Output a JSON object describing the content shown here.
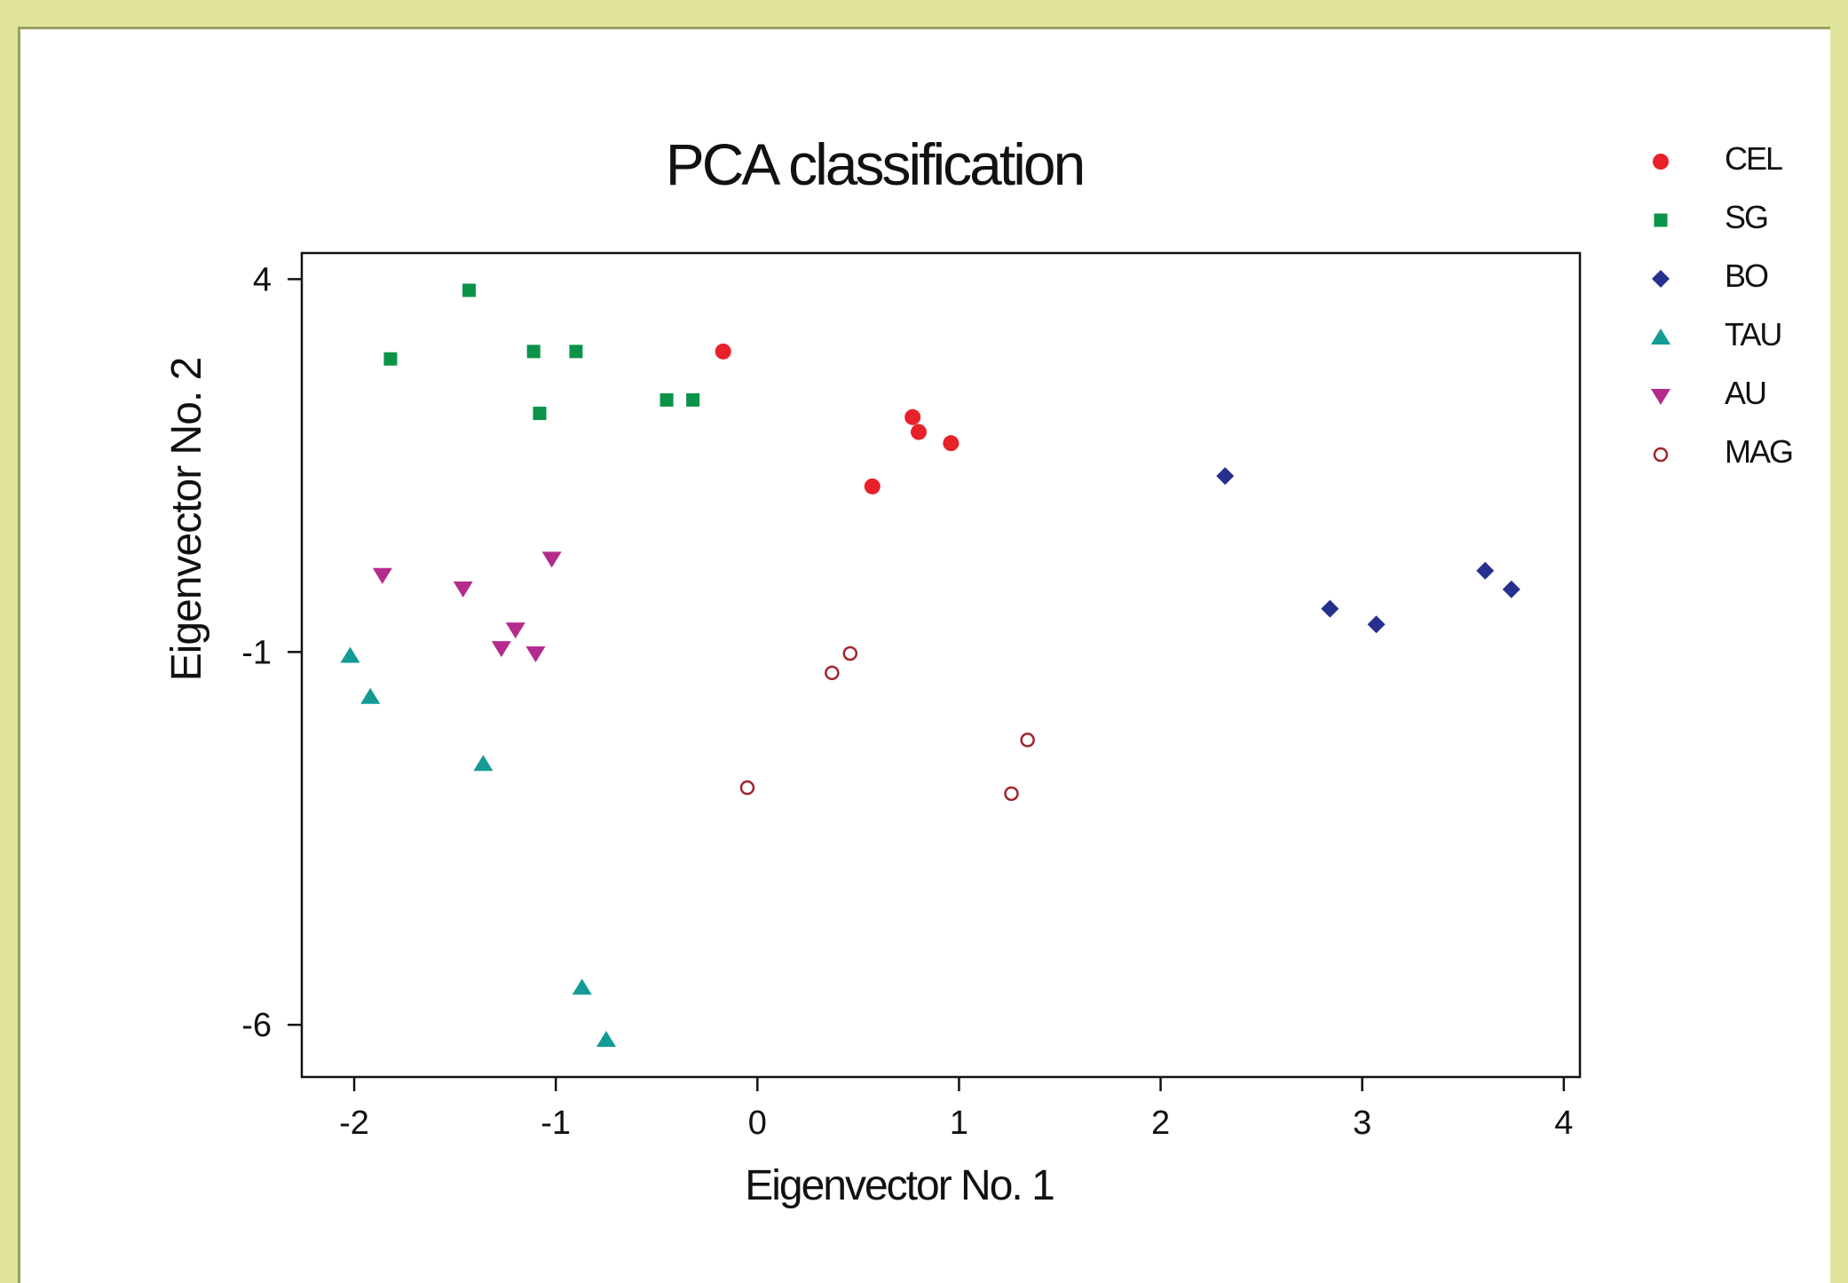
{
  "colors": {
    "background": "#dfe49a",
    "CEL": "#e8212a",
    "SG": "#0b9449",
    "BO": "#27308f",
    "TAU": "#139b94",
    "AU": "#b52a8d",
    "MAG": "#a1242c"
  },
  "chart_data": {
    "type": "scatter",
    "title": "PCA classification",
    "xlabel": "Eigenvector No. 1",
    "ylabel": "Eigenvector No. 2",
    "xlim": [
      -2.26,
      4.08
    ],
    "ylim": [
      -6.7,
      4.35
    ],
    "xticks": [
      -2,
      -1,
      0,
      1,
      2,
      3,
      4
    ],
    "yticks": [
      4,
      -1,
      -6
    ],
    "grid": false,
    "legend_position": "top-right, outside plot",
    "series": [
      {
        "name": "CEL",
        "marker": "circle",
        "color": "#e8212a",
        "points": [
          [
            -0.17,
            3.03
          ],
          [
            0.77,
            2.15
          ],
          [
            0.8,
            1.95
          ],
          [
            0.96,
            1.8
          ],
          [
            0.57,
            1.22
          ]
        ]
      },
      {
        "name": "SG",
        "marker": "square",
        "color": "#0b9449",
        "points": [
          [
            -1.43,
            3.85
          ],
          [
            -1.82,
            2.93
          ],
          [
            -1.11,
            3.03
          ],
          [
            -0.9,
            3.03
          ],
          [
            -1.08,
            2.2
          ],
          [
            -0.45,
            2.38
          ],
          [
            -0.32,
            2.38
          ]
        ]
      },
      {
        "name": "BO",
        "marker": "diamond",
        "color": "#27308f",
        "points": [
          [
            2.32,
            1.36
          ],
          [
            2.84,
            -0.42
          ],
          [
            3.07,
            -0.63
          ],
          [
            3.61,
            0.09
          ],
          [
            3.74,
            -0.16
          ]
        ]
      },
      {
        "name": "TAU",
        "marker": "triangle-up",
        "color": "#139b94",
        "points": [
          [
            -2.02,
            -1.05
          ],
          [
            -1.92,
            -1.6
          ],
          [
            -1.36,
            -2.5
          ],
          [
            -0.87,
            -5.5
          ],
          [
            -0.75,
            -6.2
          ]
        ]
      },
      {
        "name": "AU",
        "marker": "triangle-down",
        "color": "#b52a8d",
        "points": [
          [
            -1.86,
            0.03
          ],
          [
            -1.46,
            -0.15
          ],
          [
            -1.02,
            0.25
          ],
          [
            -1.2,
            -0.7
          ],
          [
            -1.27,
            -0.95
          ],
          [
            -1.1,
            -1.02
          ]
        ]
      },
      {
        "name": "MAG",
        "marker": "circle-open",
        "color": "#a1242c",
        "points": [
          [
            0.46,
            -1.02
          ],
          [
            0.37,
            -1.28
          ],
          [
            1.34,
            -2.18
          ],
          [
            -0.05,
            -2.82
          ],
          [
            1.26,
            -2.9
          ]
        ]
      }
    ]
  }
}
